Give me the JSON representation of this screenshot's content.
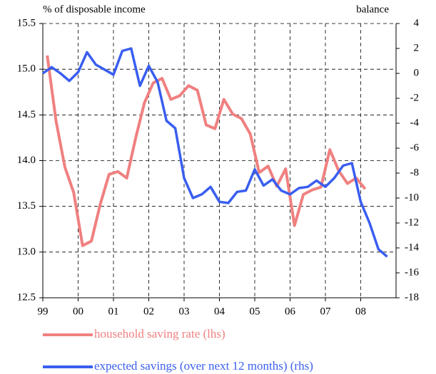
{
  "chart_data": {
    "type": "line",
    "y_label": "% of disposable income",
    "y2_label": "balance",
    "xlim": [
      1999,
      2009
    ],
    "xticks": [
      {
        "value": 1999,
        "label": "99"
      },
      {
        "value": 2000,
        "label": "00"
      },
      {
        "value": 2001,
        "label": "01"
      },
      {
        "value": 2002,
        "label": "02"
      },
      {
        "value": 2003,
        "label": "03"
      },
      {
        "value": 2004,
        "label": "04"
      },
      {
        "value": 2005,
        "label": "05"
      },
      {
        "value": 2006,
        "label": "06"
      },
      {
        "value": 2007,
        "label": "07"
      },
      {
        "value": 2008,
        "label": "08"
      }
    ],
    "ylim": [
      12.5,
      15.5
    ],
    "yticks": [
      {
        "value": 12.5,
        "label": "12.5"
      },
      {
        "value": 13,
        "label": "13.0"
      },
      {
        "value": 13.5,
        "label": "13.5"
      },
      {
        "value": 14,
        "label": "14.0"
      },
      {
        "value": 14.5,
        "label": "14.5"
      },
      {
        "value": 15,
        "label": "15.0"
      },
      {
        "value": 15.5,
        "label": "15.5"
      }
    ],
    "y2lim": [
      -18,
      4
    ],
    "y2ticks": [
      -18,
      -16,
      -14,
      -12,
      -10,
      -8,
      -6,
      -4,
      -2,
      0,
      2,
      4
    ],
    "grid": true,
    "series": [
      {
        "name": "household saving rate (lhs)",
        "color": "#f08080",
        "axis": "y",
        "x": [
          1999.125,
          1999.375,
          1999.625,
          1999.875,
          2000.125,
          2000.375,
          2000.625,
          2000.875,
          2001.125,
          2001.375,
          2001.625,
          2001.875,
          2002.125,
          2002.375,
          2002.625,
          2002.875,
          2003.125,
          2003.375,
          2003.625,
          2003.875,
          2004.125,
          2004.375,
          2004.625,
          2004.875,
          2005.125,
          2005.375,
          2005.625,
          2005.875,
          2006.125,
          2006.375,
          2006.625,
          2006.875,
          2007.125,
          2007.375,
          2007.625,
          2007.875,
          2008.125
        ],
        "values": [
          15.15,
          14.43,
          13.93,
          13.65,
          13.07,
          13.12,
          13.52,
          13.85,
          13.88,
          13.81,
          14.24,
          14.63,
          14.85,
          14.9,
          14.67,
          14.71,
          14.82,
          14.77,
          14.39,
          14.35,
          14.67,
          14.51,
          14.46,
          14.29,
          13.87,
          13.94,
          13.72,
          13.91,
          13.29,
          13.63,
          13.68,
          13.71,
          14.12,
          13.89,
          13.75,
          13.81,
          13.69
        ]
      },
      {
        "name": "expected savings (over next 12 months) (rhs)",
        "color": "#3a5ef0",
        "axis": "y2",
        "x": [
          1999,
          1999.25,
          1999.5,
          1999.75,
          2000,
          2000.25,
          2000.5,
          2000.75,
          2001,
          2001.25,
          2001.5,
          2001.75,
          2002,
          2002.25,
          2002.5,
          2002.75,
          2003,
          2003.25,
          2003.5,
          2003.75,
          2004,
          2004.25,
          2004.5,
          2004.75,
          2005,
          2005.25,
          2005.5,
          2005.75,
          2006,
          2006.25,
          2006.5,
          2006.75,
          2007,
          2007.25,
          2007.5,
          2007.75,
          2008,
          2008.25,
          2008.5,
          2008.75
        ],
        "values": [
          0,
          0.5,
          0,
          -0.6,
          0.1,
          1.7,
          0.7,
          0.3,
          -0.1,
          1.8,
          2.0,
          -1.0,
          0.6,
          -0.7,
          -3.8,
          -4.4,
          -8.4,
          -10.0,
          -9.7,
          -9.1,
          -10.3,
          -10.4,
          -9.5,
          -9.4,
          -7.7,
          -9.0,
          -8.5,
          -9.4,
          -9.7,
          -9.2,
          -9.1,
          -8.6,
          -9.1,
          -8.4,
          -7.4,
          -7.2,
          -10.3,
          -12.0,
          -14.1,
          -14.7
        ]
      }
    ]
  }
}
